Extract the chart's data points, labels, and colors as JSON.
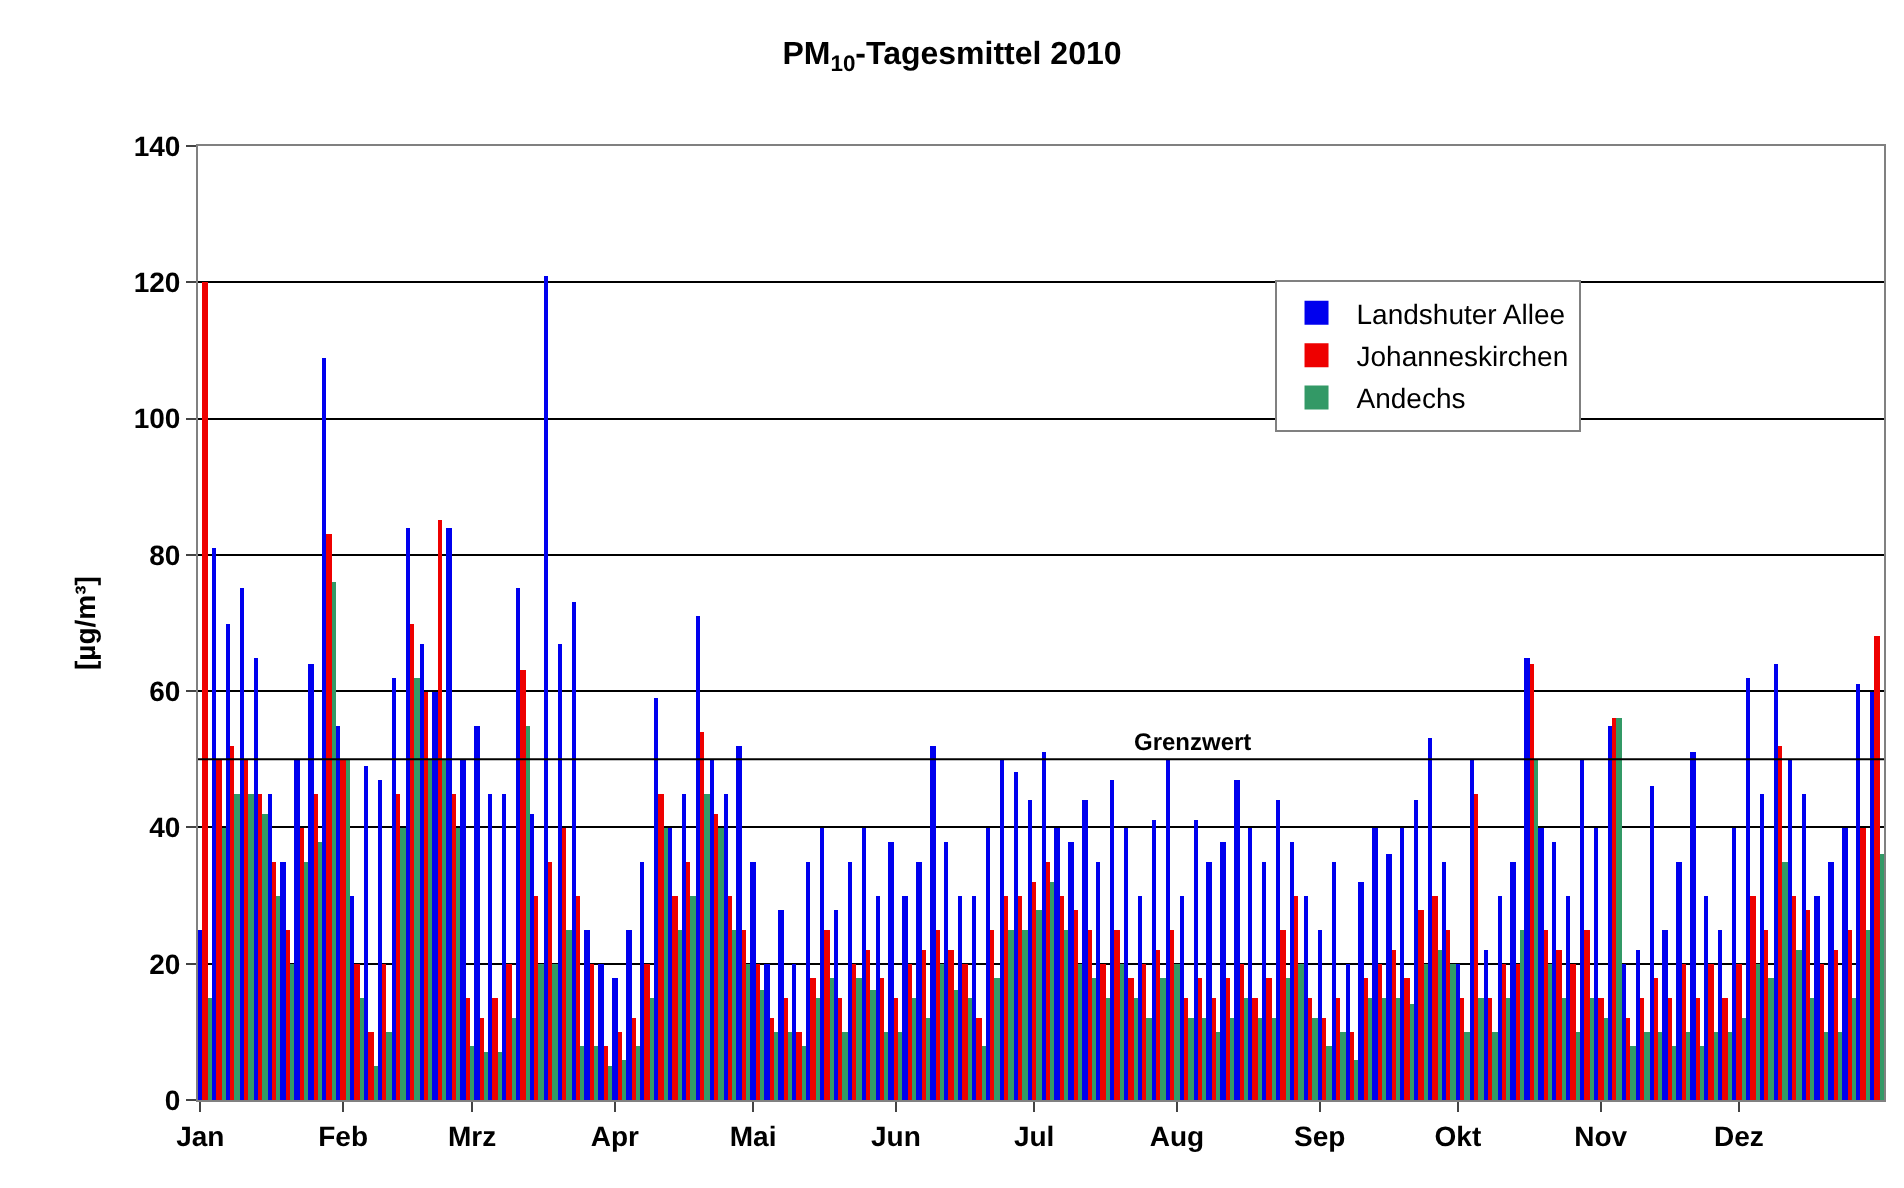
{
  "chart_data": {
    "type": "bar",
    "title": "PM$_{10}$-Tagesmittel 2010",
    "ylabel": "[µg/m³]",
    "x": [
      "2010-01-02",
      "2010-01-05",
      "2010-01-08",
      "2010-01-11",
      "2010-01-14",
      "2010-01-17",
      "2010-01-20",
      "2010-01-23",
      "2010-01-26",
      "2010-01-29",
      "2010-02-01",
      "2010-02-04",
      "2010-02-07",
      "2010-02-10",
      "2010-02-13",
      "2010-02-16",
      "2010-02-19",
      "2010-02-22",
      "2010-02-25",
      "2010-02-28",
      "2010-03-03",
      "2010-03-06",
      "2010-03-09",
      "2010-03-12",
      "2010-03-15",
      "2010-03-18",
      "2010-03-21",
      "2010-03-24",
      "2010-03-27",
      "2010-03-30",
      "2010-04-02",
      "2010-04-05",
      "2010-04-08",
      "2010-04-11",
      "2010-04-14",
      "2010-04-17",
      "2010-04-20",
      "2010-04-23",
      "2010-04-26",
      "2010-04-29",
      "2010-05-02",
      "2010-05-05",
      "2010-05-08",
      "2010-05-11",
      "2010-05-14",
      "2010-05-17",
      "2010-05-20",
      "2010-05-23",
      "2010-05-26",
      "2010-05-29",
      "2010-06-01",
      "2010-06-04",
      "2010-06-07",
      "2010-06-10",
      "2010-06-13",
      "2010-06-16",
      "2010-06-19",
      "2010-06-22",
      "2010-06-25",
      "2010-06-28",
      "2010-07-01",
      "2010-07-04",
      "2010-07-07",
      "2010-07-10",
      "2010-07-13",
      "2010-07-16",
      "2010-07-19",
      "2010-07-22",
      "2010-07-25",
      "2010-07-28",
      "2010-07-31",
      "2010-08-03",
      "2010-08-06",
      "2010-08-09",
      "2010-08-12",
      "2010-08-15",
      "2010-08-18",
      "2010-08-21",
      "2010-08-24",
      "2010-08-27",
      "2010-08-30",
      "2010-09-02",
      "2010-09-05",
      "2010-09-08",
      "2010-09-11",
      "2010-09-14",
      "2010-09-17",
      "2010-09-20",
      "2010-09-23",
      "2010-09-26",
      "2010-09-29",
      "2010-10-02",
      "2010-10-05",
      "2010-10-08",
      "2010-10-11",
      "2010-10-14",
      "2010-10-17",
      "2010-10-20",
      "2010-10-23",
      "2010-10-26",
      "2010-10-29",
      "2010-11-01",
      "2010-11-04",
      "2010-11-07",
      "2010-11-10",
      "2010-11-13",
      "2010-11-16",
      "2010-11-19",
      "2010-11-22",
      "2010-11-25",
      "2010-11-28",
      "2010-12-01",
      "2010-12-04",
      "2010-12-07",
      "2010-12-10",
      "2010-12-13",
      "2010-12-16",
      "2010-12-19",
      "2010-12-22",
      "2010-12-25",
      "2010-12-28",
      "2010-12-31"
    ],
    "series": [
      {
        "name": "Landshuter Allee",
        "color": "#0000ee",
        "values": [
          25,
          81,
          70,
          75,
          65,
          45,
          35,
          50,
          64,
          109,
          55,
          30,
          49,
          47,
          62,
          84,
          67,
          60,
          84,
          50,
          55,
          45,
          45,
          75,
          42,
          121,
          67,
          73,
          25,
          20,
          18,
          25,
          35,
          59,
          40,
          45,
          71,
          50,
          45,
          52,
          35,
          20,
          28,
          20,
          35,
          40,
          28,
          35,
          40,
          30,
          38,
          30,
          35,
          52,
          38,
          30,
          30,
          40,
          50,
          48,
          44,
          51,
          40,
          38,
          44,
          35,
          47,
          40,
          30,
          41,
          50,
          30,
          41,
          35,
          38,
          47,
          40,
          35,
          44,
          38,
          30,
          25,
          35,
          20,
          32,
          40,
          36,
          40,
          44,
          53,
          35,
          20,
          50,
          22,
          30,
          35,
          65,
          40,
          38,
          30,
          50,
          40,
          55,
          20,
          22,
          46,
          25,
          35,
          51,
          30,
          25,
          40,
          62,
          45,
          64,
          50,
          45,
          30,
          35,
          40,
          61,
          60
        ]
      },
      {
        "name": "Johanneskirchen",
        "color": "#ee0000",
        "values": [
          120,
          50,
          52,
          50,
          45,
          35,
          25,
          40,
          45,
          83,
          50,
          20,
          10,
          20,
          45,
          70,
          60,
          85,
          45,
          15,
          12,
          15,
          20,
          63,
          30,
          35,
          40,
          30,
          20,
          8,
          10,
          12,
          20,
          45,
          30,
          35,
          54,
          42,
          30,
          25,
          20,
          12,
          15,
          10,
          18,
          25,
          15,
          20,
          22,
          18,
          15,
          20,
          22,
          25,
          22,
          20,
          12,
          25,
          30,
          30,
          32,
          35,
          30,
          28,
          25,
          20,
          25,
          18,
          20,
          22,
          25,
          15,
          18,
          15,
          18,
          20,
          15,
          18,
          25,
          30,
          15,
          12,
          15,
          10,
          18,
          20,
          22,
          18,
          28,
          30,
          25,
          15,
          45,
          15,
          20,
          20,
          64,
          25,
          22,
          20,
          25,
          15,
          56,
          12,
          15,
          18,
          15,
          20,
          15,
          20,
          15,
          20,
          30,
          25,
          52,
          30,
          28,
          20,
          22,
          25,
          40,
          68
        ]
      },
      {
        "name": "Andechs",
        "color": "#339966",
        "values": [
          15,
          40,
          45,
          45,
          42,
          30,
          20,
          35,
          38,
          76,
          50,
          15,
          5,
          10,
          40,
          62,
          50,
          50,
          40,
          8,
          7,
          7,
          12,
          55,
          20,
          20,
          25,
          8,
          8,
          5,
          6,
          8,
          15,
          40,
          25,
          30,
          45,
          40,
          25,
          20,
          16,
          10,
          10,
          8,
          15,
          18,
          10,
          18,
          16,
          10,
          10,
          15,
          12,
          20,
          16,
          15,
          8,
          18,
          25,
          25,
          28,
          32,
          25,
          20,
          18,
          15,
          20,
          15,
          12,
          18,
          20,
          12,
          12,
          10,
          12,
          15,
          12,
          12,
          18,
          20,
          12,
          8,
          10,
          6,
          15,
          15,
          15,
          14,
          20,
          22,
          20,
          10,
          15,
          10,
          15,
          25,
          50,
          20,
          15,
          10,
          15,
          12,
          56,
          8,
          10,
          10,
          8,
          10,
          8,
          10,
          10,
          12,
          20,
          18,
          35,
          22,
          15,
          10,
          10,
          15,
          25,
          36
        ]
      }
    ],
    "xlim": [
      "2009-12-31T12:00",
      "2011-01-01T12:00"
    ],
    "xticks": [
      {
        "value": "2010-01-01",
        "label": "Jan"
      },
      {
        "value": "2010-02-01",
        "label": "Feb"
      },
      {
        "value": "2010-03-01",
        "label": "Mrz"
      },
      {
        "value": "2010-04-01",
        "label": "Apr"
      },
      {
        "value": "2010-05-01",
        "label": "Mai"
      },
      {
        "value": "2010-06-01",
        "label": "Jun"
      },
      {
        "value": "2010-07-01",
        "label": "Jul"
      },
      {
        "value": "2010-08-01",
        "label": "Aug"
      },
      {
        "value": "2010-09-01",
        "label": "Sep"
      },
      {
        "value": "2010-10-01",
        "label": "Okt"
      },
      {
        "value": "2010-11-01",
        "label": "Nov"
      },
      {
        "value": "2010-12-01",
        "label": "Dez"
      }
    ],
    "ylim": [
      0,
      140
    ],
    "yticks": [
      0,
      20,
      40,
      60,
      80,
      100,
      120,
      140
    ],
    "ref_lines": [
      {
        "axis": "y",
        "value": 50,
        "label": "Grenzwert",
        "color": "#000000"
      }
    ],
    "grid": "y",
    "legend": "top right"
  }
}
